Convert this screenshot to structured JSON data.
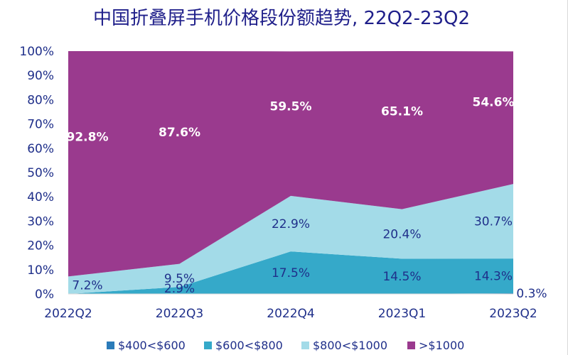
{
  "chart_data": {
    "type": "area",
    "stacked": true,
    "title": "中国折叠屏手机价格段份额趋势, 22Q2-23Q2",
    "xlabel": "",
    "ylabel": "",
    "ylim": [
      0,
      100
    ],
    "y_ticks": [
      "0%",
      "10%",
      "20%",
      "30%",
      "40%",
      "50%",
      "60%",
      "70%",
      "80%",
      "90%",
      "100%"
    ],
    "categories": [
      "2022Q2",
      "2022Q3",
      "2022Q4",
      "2023Q1",
      "2023Q2"
    ],
    "series": [
      {
        "name": "$400<$600",
        "color": "#2b7bb9",
        "values": [
          0,
          0,
          0,
          0,
          0.3
        ],
        "labels": [
          "",
          "",
          "",
          "",
          "0.3%"
        ]
      },
      {
        "name": "$600<$800",
        "color": "#35a9c9",
        "values": [
          0,
          2.9,
          17.5,
          14.5,
          14.3
        ],
        "labels": [
          "",
          "2.9%",
          "17.5%",
          "14.5%",
          "14.3%"
        ]
      },
      {
        "name": "$800<$1000",
        "color": "#a3dbe8",
        "values": [
          7.2,
          9.5,
          22.9,
          20.4,
          30.7
        ],
        "labels": [
          "7.2%",
          "9.5%",
          "22.9%",
          "20.4%",
          "30.7%"
        ]
      },
      {
        "name": ">$1000",
        "color": "#9a3a8e",
        "values": [
          92.8,
          87.6,
          59.5,
          65.1,
          54.6
        ],
        "labels": [
          "92.8%",
          "87.6%",
          "59.5%",
          "65.1%",
          "54.6%"
        ]
      }
    ],
    "legend_position": "bottom",
    "colors": {
      "title": "#1f1f8a",
      "axis_text": "#1f2f8a",
      "label_dark": "#1f2f8a",
      "label_light": "#ffffff"
    }
  }
}
